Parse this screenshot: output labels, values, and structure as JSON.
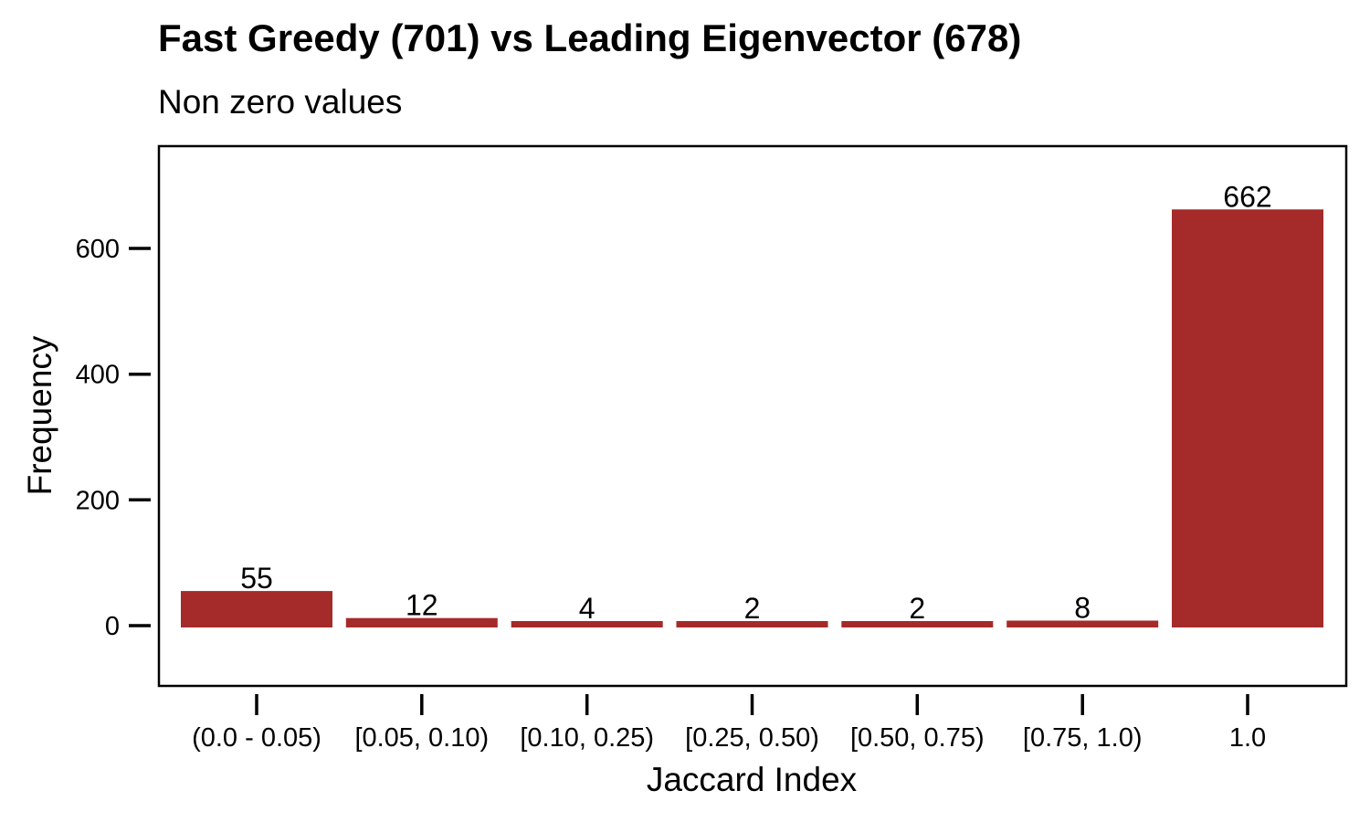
{
  "chart_data": {
    "type": "bar",
    "title": "Fast Greedy (701) vs Leading Eigenvector (678)",
    "subtitle": "Non zero values",
    "xlabel": "Jaccard Index",
    "ylabel": "Frequency",
    "categories": [
      "(0.0 - 0.05)",
      "[0.05, 0.10)",
      "[0.10, 0.25)",
      "[0.25, 0.50)",
      "[0.50, 0.75)",
      "[0.75, 1.0)",
      "1.0"
    ],
    "values": [
      55,
      12,
      4,
      2,
      2,
      8,
      662
    ],
    "data_labels": [
      "55",
      "12",
      "4",
      "2",
      "2",
      "8",
      "662"
    ],
    "yticks": [
      0,
      200,
      400,
      600
    ],
    "ytick_labels": [
      "0",
      "200",
      "400",
      "600"
    ],
    "ylim": [
      -95,
      755
    ],
    "grid": false,
    "legend": "none",
    "bar_color": "#a52a2a"
  }
}
